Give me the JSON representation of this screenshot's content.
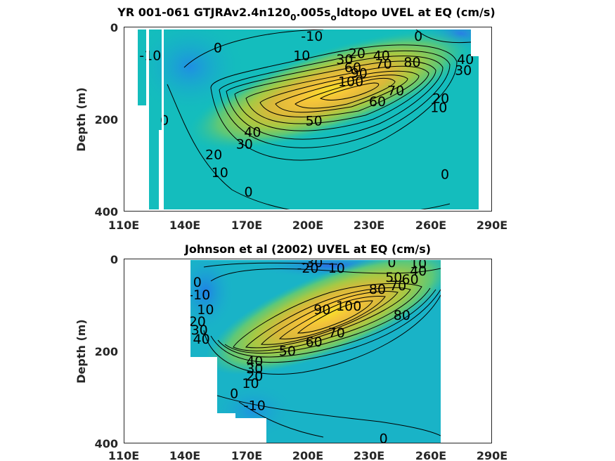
{
  "chart_data": [
    {
      "type": "heatmap",
      "title_parts": [
        "YR 001-061 GTJRAv2.4n120",
        "0",
        ".005s",
        "o",
        "ldtopo UVEL at EQ (cm/s)"
      ],
      "xlabel": "",
      "ylabel": "Depth (m)",
      "x_tick_labels": [
        "110E",
        "140E",
        "170E",
        "200E",
        "230E",
        "260E",
        "290E"
      ],
      "y_tick_labels": [
        "0",
        "200",
        "400"
      ],
      "xlim": [
        110,
        290
      ],
      "ylim": [
        400,
        0
      ],
      "colorscale": [
        "#3a6fe0",
        "#1fa6de",
        "#12bdbd",
        "#3cc68a",
        "#86cc4f",
        "#c6c43a",
        "#f0b53a",
        "#f8df2a"
      ],
      "contour_levels": [
        -10,
        0,
        10,
        20,
        30,
        40,
        50,
        60,
        70,
        80,
        90,
        100
      ],
      "contour_labels": [
        {
          "text": "-10",
          "lon": 202,
          "depth": 20
        },
        {
          "text": "0",
          "lon": 254,
          "depth": 20
        },
        {
          "text": "10",
          "lon": 197,
          "depth": 62
        },
        {
          "text": "30",
          "lon": 218,
          "depth": 70
        },
        {
          "text": "20",
          "lon": 224,
          "depth": 57
        },
        {
          "text": "40",
          "lon": 236,
          "depth": 62
        },
        {
          "text": "60",
          "lon": 222,
          "depth": 88
        },
        {
          "text": "90",
          "lon": 225,
          "depth": 100
        },
        {
          "text": "70",
          "lon": 237,
          "depth": 80
        },
        {
          "text": "100",
          "lon": 221,
          "depth": 118
        },
        {
          "text": "80",
          "lon": 251,
          "depth": 76
        },
        {
          "text": "40",
          "lon": 277,
          "depth": 70
        },
        {
          "text": "30",
          "lon": 276,
          "depth": 94
        },
        {
          "text": "70",
          "lon": 243,
          "depth": 138
        },
        {
          "text": "60",
          "lon": 234,
          "depth": 162
        },
        {
          "text": "20",
          "lon": 265,
          "depth": 155
        },
        {
          "text": "10",
          "lon": 264,
          "depth": 175
        },
        {
          "text": "50",
          "lon": 203,
          "depth": 204
        },
        {
          "text": "40",
          "lon": 173,
          "depth": 228
        },
        {
          "text": "30",
          "lon": 169,
          "depth": 254
        },
        {
          "text": "20",
          "lon": 154,
          "depth": 277
        },
        {
          "text": "10",
          "lon": 157,
          "depth": 316
        },
        {
          "text": "0",
          "lon": 171,
          "depth": 358
        },
        {
          "text": "0",
          "lon": 130,
          "depth": 202
        },
        {
          "text": "0",
          "lon": 156,
          "depth": 45
        },
        {
          "text": "-10",
          "lon": 123,
          "depth": 62
        },
        {
          "text": "0",
          "lon": 267,
          "depth": 320
        }
      ]
    },
    {
      "type": "heatmap",
      "title": "Johnson et al (2002) UVEL at EQ (cm/s)",
      "xlabel": "",
      "ylabel": "Depth (m)",
      "x_tick_labels": [
        "110E",
        "140E",
        "170E",
        "200E",
        "230E",
        "260E",
        "290E"
      ],
      "y_tick_labels": [
        "0",
        "200",
        "400"
      ],
      "xlim": [
        110,
        290
      ],
      "ylim": [
        400,
        0
      ],
      "colorscale": [
        "#3a6fe0",
        "#1fa6de",
        "#12bdbd",
        "#3cc68a",
        "#86cc4f",
        "#c6c43a",
        "#f0b53a",
        "#f8df2a"
      ],
      "contour_levels": [
        -30,
        -20,
        -10,
        0,
        10,
        20,
        30,
        40,
        50,
        60,
        70,
        80,
        90,
        100
      ],
      "contour_labels": [
        {
          "text": "-30",
          "lon": 202,
          "depth": 8
        },
        {
          "text": "-20",
          "lon": 200,
          "depth": 20
        },
        {
          "text": "10",
          "lon": 214,
          "depth": 20
        },
        {
          "text": "0",
          "lon": 241,
          "depth": 8
        },
        {
          "text": "10",
          "lon": 254,
          "depth": 10
        },
        {
          "text": "40",
          "lon": 254,
          "depth": 26
        },
        {
          "text": "50",
          "lon": 242,
          "depth": 40
        },
        {
          "text": "60",
          "lon": 250,
          "depth": 44
        },
        {
          "text": "70",
          "lon": 244,
          "depth": 58
        },
        {
          "text": "80",
          "lon": 234,
          "depth": 66
        },
        {
          "text": "0",
          "lon": 146,
          "depth": 50
        },
        {
          "text": "-10",
          "lon": 147,
          "depth": 78
        },
        {
          "text": "10",
          "lon": 150,
          "depth": 110
        },
        {
          "text": "20",
          "lon": 146,
          "depth": 136
        },
        {
          "text": "30",
          "lon": 147,
          "depth": 154
        },
        {
          "text": "40",
          "lon": 148,
          "depth": 174
        },
        {
          "text": "90",
          "lon": 207,
          "depth": 110
        },
        {
          "text": "100",
          "lon": 220,
          "depth": 102
        },
        {
          "text": "80",
          "lon": 246,
          "depth": 122
        },
        {
          "text": "70",
          "lon": 214,
          "depth": 160
        },
        {
          "text": "60",
          "lon": 203,
          "depth": 180
        },
        {
          "text": "50",
          "lon": 190,
          "depth": 200
        },
        {
          "text": "40",
          "lon": 174,
          "depth": 222
        },
        {
          "text": "30",
          "lon": 174,
          "depth": 238
        },
        {
          "text": "20",
          "lon": 174,
          "depth": 254
        },
        {
          "text": "10",
          "lon": 172,
          "depth": 270
        },
        {
          "text": "0",
          "lon": 164,
          "depth": 292
        },
        {
          "text": "-10",
          "lon": 174,
          "depth": 318
        },
        {
          "text": "0",
          "lon": 237,
          "depth": 390
        }
      ]
    }
  ]
}
